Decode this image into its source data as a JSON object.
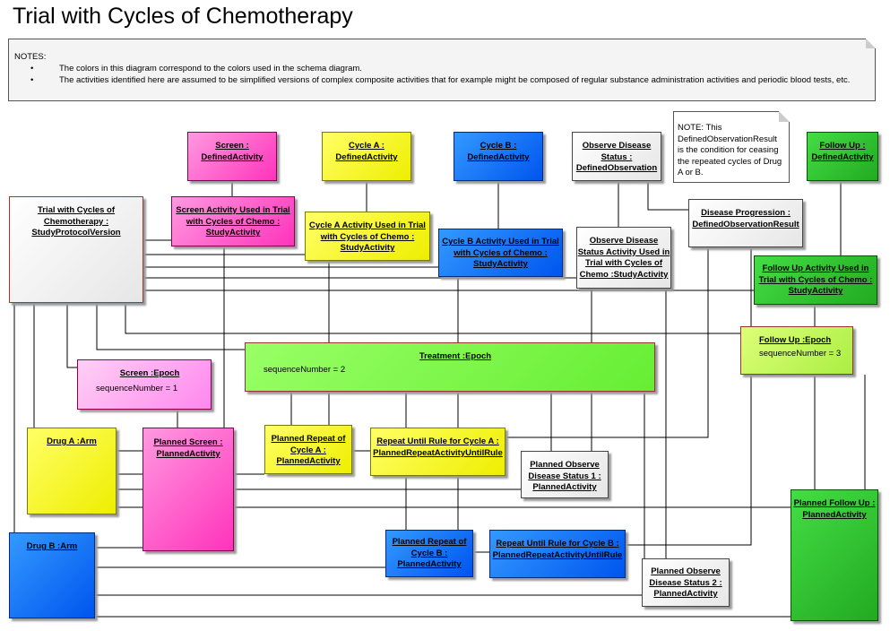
{
  "title": "Trial with Cycles of Chemotherapy",
  "notes": {
    "heading": "NOTES:",
    "items": [
      "The colors in this diagram correspond to the colors used in the schema diagram.",
      "The activities identified here are assumed to be simplified versions of complex composite activities that for example might be composed of regular substance administration activities and periodic blood tests, etc."
    ]
  },
  "note2": "NOTE:  This DefinedObservationResult is the condition for ceasing the repeated cycles of Drug A or B.",
  "boxes": {
    "screen_def": "Screen : DefinedActivity",
    "cycleA_def": "Cycle A : DefinedActivity",
    "cycleB_def": "Cycle B : DefinedActivity",
    "observe_def": "Observe Disease Status : DefinedObservation",
    "followup_def": "Follow Up : DefinedActivity",
    "trial": "Trial with Cycles of Chemotherapy : StudyProtocolVersion",
    "screen_study": "Screen Activity Used in Trial with Cycles of Chemo : StudyActivity",
    "cycleA_study": "Cycle A Activity Used in Trial with Cycles of Chemo : StudyActivity",
    "cycleB_study": "Cycle B Activity Used in Trial with Cycles of Chemo : StudyActivity",
    "observe_study": "Observe Disease Status Activity Used in Trial with Cycles of Chemo :StudyActivity",
    "disease_prog": "Disease Progression : DefinedObservationResult",
    "followup_study": "Follow Up Activity Used in Trial with Cycles of Chemo : StudyActivity",
    "followup_epoch": "Follow Up :Epoch",
    "followup_epoch_attr": "sequenceNumber = 3",
    "treatment_epoch": "Treatment :Epoch",
    "treatment_epoch_attr": "sequenceNumber = 2",
    "screen_epoch": "Screen :Epoch",
    "screen_epoch_attr": "sequenceNumber = 1",
    "drugA": "Drug A :Arm",
    "planned_screen": "Planned Screen : PlannedActivity",
    "planned_repeatA": "Planned Repeat of Cycle A : PlannedActivity",
    "repeat_ruleA": "Repeat Until Rule for Cycle A : PlannedRepeatActivityUntilRule",
    "planned_obs1": "Planned Observe Disease Status 1 : PlannedActivity",
    "planned_followup": "Planned Follow Up : PlannedActivity",
    "drugB": "Drug B :Arm",
    "planned_repeatB": "Planned Repeat of Cycle B : PlannedActivity",
    "repeat_ruleB": "Repeat Until Rule for Cycle B : PlannedRepeatActivityUntilRule",
    "planned_obs2": "Planned Observe Disease Status 2 : PlannedActivity"
  }
}
